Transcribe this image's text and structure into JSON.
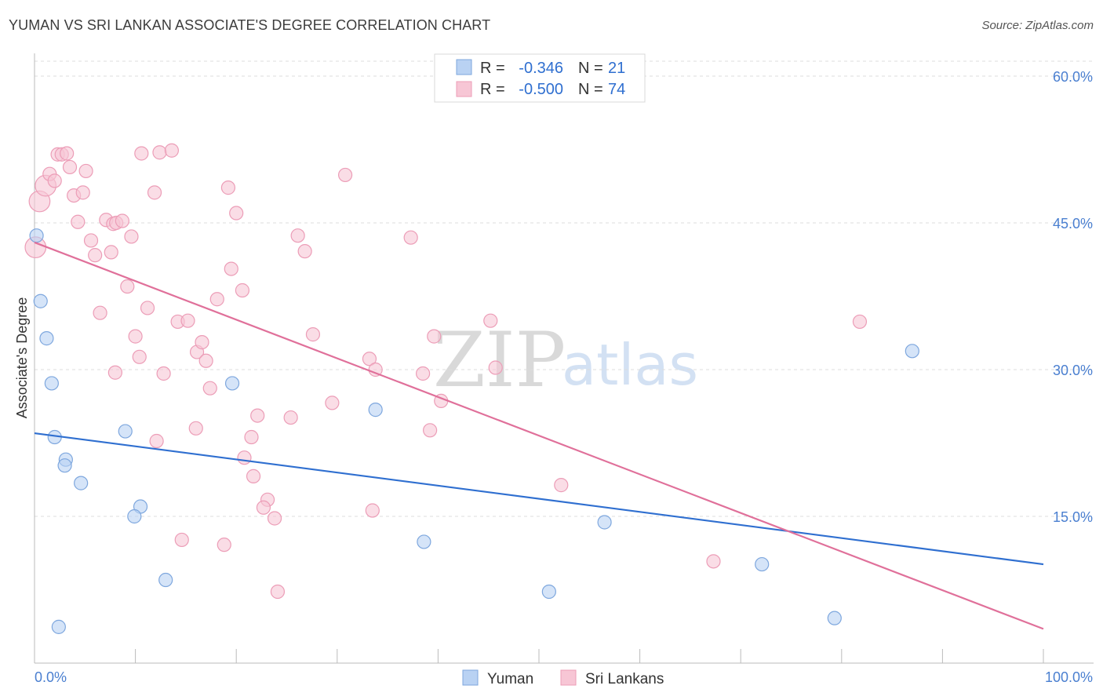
{
  "title": "YUMAN VS SRI LANKAN ASSOCIATE'S DEGREE CORRELATION CHART",
  "source": "Source: ZipAtlas.com",
  "watermark": {
    "part1": "ZIP",
    "part2": "atlas"
  },
  "colors": {
    "yuman_fill": "#b9d2f3",
    "yuman_stroke": "#7ea7de",
    "yuman_line": "#2f6fd0",
    "srilankan_fill": "#f7c6d5",
    "srilankan_stroke": "#ec9db7",
    "srilankan_line": "#e0709a",
    "grid": "#dddddd",
    "tick_text": "#4a7fd0"
  },
  "legend": {
    "rows": [
      {
        "r_label": "R =",
        "r_value": "-0.346",
        "n_label": "N =",
        "n_value": "21"
      },
      {
        "r_label": "R =",
        "r_value": "-0.500",
        "n_label": "N =",
        "n_value": "74"
      }
    ]
  },
  "chart_data": {
    "type": "scatter",
    "title": "YUMAN VS SRI LANKAN ASSOCIATE'S DEGREE CORRELATION CHART",
    "xlabel": "",
    "ylabel": "Associate's Degree",
    "xlim": [
      0,
      100
    ],
    "ylim": [
      0,
      60
    ],
    "x_tick_labels": [
      "0.0%",
      "100.0%"
    ],
    "y_ticks": [
      15,
      30,
      45,
      60
    ],
    "y_tick_labels": [
      "15.0%",
      "30.0%",
      "45.0%",
      "60.0%"
    ],
    "legend_position": "bottom-center",
    "series": [
      {
        "name": "Yuman",
        "r": -0.346,
        "n": 21,
        "trend": {
          "x": [
            0,
            100
          ],
          "y": [
            23.5,
            10.1
          ]
        },
        "points": [
          {
            "x": 0.2,
            "y": 43.7
          },
          {
            "x": 0.6,
            "y": 37.0
          },
          {
            "x": 1.2,
            "y": 33.2
          },
          {
            "x": 1.7,
            "y": 28.6
          },
          {
            "x": 2.0,
            "y": 23.1
          },
          {
            "x": 3.1,
            "y": 20.8
          },
          {
            "x": 3.0,
            "y": 20.2
          },
          {
            "x": 4.6,
            "y": 18.4
          },
          {
            "x": 9.0,
            "y": 23.7
          },
          {
            "x": 10.5,
            "y": 16.0
          },
          {
            "x": 9.9,
            "y": 15.0
          },
          {
            "x": 13.0,
            "y": 8.5
          },
          {
            "x": 2.4,
            "y": 3.7
          },
          {
            "x": 19.6,
            "y": 28.6
          },
          {
            "x": 33.8,
            "y": 25.9
          },
          {
            "x": 38.6,
            "y": 12.4
          },
          {
            "x": 51.0,
            "y": 7.3
          },
          {
            "x": 56.5,
            "y": 14.4
          },
          {
            "x": 72.1,
            "y": 10.1
          },
          {
            "x": 79.3,
            "y": 4.6
          },
          {
            "x": 87.0,
            "y": 31.9
          }
        ]
      },
      {
        "name": "Sri Lankans",
        "r": -0.5,
        "n": 74,
        "trend": {
          "x": [
            0,
            100
          ],
          "y": [
            43.0,
            3.5
          ]
        },
        "points": [
          {
            "x": 0.1,
            "y": 42.5,
            "s": 2
          },
          {
            "x": 0.5,
            "y": 47.2,
            "s": 2
          },
          {
            "x": 1.1,
            "y": 48.8,
            "s": 2
          },
          {
            "x": 1.5,
            "y": 50.0
          },
          {
            "x": 2.0,
            "y": 49.3
          },
          {
            "x": 2.3,
            "y": 52.0
          },
          {
            "x": 2.7,
            "y": 52.0
          },
          {
            "x": 3.2,
            "y": 52.1
          },
          {
            "x": 3.5,
            "y": 50.7
          },
          {
            "x": 3.9,
            "y": 47.8
          },
          {
            "x": 4.8,
            "y": 48.1
          },
          {
            "x": 5.1,
            "y": 50.3
          },
          {
            "x": 4.3,
            "y": 45.1
          },
          {
            "x": 5.6,
            "y": 43.2
          },
          {
            "x": 6.0,
            "y": 41.7
          },
          {
            "x": 7.1,
            "y": 45.3
          },
          {
            "x": 7.6,
            "y": 42.0
          },
          {
            "x": 7.8,
            "y": 44.9
          },
          {
            "x": 8.1,
            "y": 45.0
          },
          {
            "x": 8.7,
            "y": 45.2
          },
          {
            "x": 9.6,
            "y": 43.6
          },
          {
            "x": 10.6,
            "y": 52.1
          },
          {
            "x": 11.9,
            "y": 48.1
          },
          {
            "x": 12.4,
            "y": 52.2
          },
          {
            "x": 13.6,
            "y": 52.4
          },
          {
            "x": 9.2,
            "y": 38.5
          },
          {
            "x": 6.5,
            "y": 35.8
          },
          {
            "x": 11.2,
            "y": 36.3
          },
          {
            "x": 14.2,
            "y": 34.9
          },
          {
            "x": 15.2,
            "y": 35.0
          },
          {
            "x": 10.0,
            "y": 33.4
          },
          {
            "x": 10.4,
            "y": 31.3
          },
          {
            "x": 16.1,
            "y": 31.8
          },
          {
            "x": 16.6,
            "y": 32.8
          },
          {
            "x": 17.0,
            "y": 30.9
          },
          {
            "x": 8.0,
            "y": 29.7
          },
          {
            "x": 12.8,
            "y": 29.6
          },
          {
            "x": 17.4,
            "y": 28.1
          },
          {
            "x": 19.2,
            "y": 48.6
          },
          {
            "x": 20.0,
            "y": 46.0
          },
          {
            "x": 19.5,
            "y": 40.3
          },
          {
            "x": 20.6,
            "y": 38.1
          },
          {
            "x": 18.1,
            "y": 37.2
          },
          {
            "x": 16.0,
            "y": 24.0
          },
          {
            "x": 12.1,
            "y": 22.7
          },
          {
            "x": 22.1,
            "y": 25.3
          },
          {
            "x": 21.5,
            "y": 23.1
          },
          {
            "x": 25.4,
            "y": 25.1
          },
          {
            "x": 20.8,
            "y": 21.0
          },
          {
            "x": 21.7,
            "y": 19.1
          },
          {
            "x": 23.1,
            "y": 16.7
          },
          {
            "x": 22.7,
            "y": 15.9
          },
          {
            "x": 23.8,
            "y": 14.8
          },
          {
            "x": 14.6,
            "y": 12.6
          },
          {
            "x": 18.8,
            "y": 12.1
          },
          {
            "x": 24.1,
            "y": 7.3
          },
          {
            "x": 26.1,
            "y": 43.7
          },
          {
            "x": 26.8,
            "y": 42.1
          },
          {
            "x": 29.5,
            "y": 26.6
          },
          {
            "x": 27.6,
            "y": 33.6
          },
          {
            "x": 30.8,
            "y": 49.9
          },
          {
            "x": 33.2,
            "y": 31.1
          },
          {
            "x": 33.8,
            "y": 30.0
          },
          {
            "x": 33.5,
            "y": 15.6
          },
          {
            "x": 37.3,
            "y": 43.5
          },
          {
            "x": 38.5,
            "y": 29.6
          },
          {
            "x": 39.6,
            "y": 33.4
          },
          {
            "x": 39.2,
            "y": 23.8
          },
          {
            "x": 40.3,
            "y": 26.8
          },
          {
            "x": 45.2,
            "y": 35.0
          },
          {
            "x": 45.7,
            "y": 30.2
          },
          {
            "x": 52.2,
            "y": 18.2
          },
          {
            "x": 67.3,
            "y": 10.4
          },
          {
            "x": 81.8,
            "y": 34.9
          }
        ]
      }
    ]
  }
}
